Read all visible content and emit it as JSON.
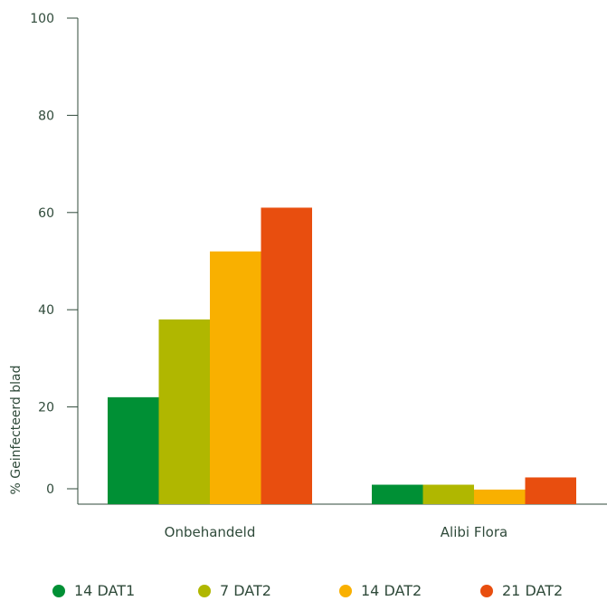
{
  "chart_data": {
    "type": "bar",
    "title": "",
    "xlabel": "",
    "ylabel": "% Geinfecteerd blad",
    "ylim": [
      0,
      100
    ],
    "yticks": [
      0,
      20,
      40,
      60,
      80,
      100
    ],
    "categories": [
      "Onbehandeld",
      "Alibi Flora"
    ],
    "series": [
      {
        "name": "14 DAT1",
        "color": "#009035",
        "values": [
          22,
          4
        ]
      },
      {
        "name": "7 DAT2",
        "color": "#b0b700",
        "values": [
          38,
          4
        ]
      },
      {
        "name": "14 DAT2",
        "color": "#f9b000",
        "values": [
          52,
          3
        ]
      },
      {
        "name": "21 DAT2",
        "color": "#e84e0f",
        "values": [
          61,
          5.5
        ]
      }
    ],
    "grid": false,
    "legend_position": "bottom"
  }
}
